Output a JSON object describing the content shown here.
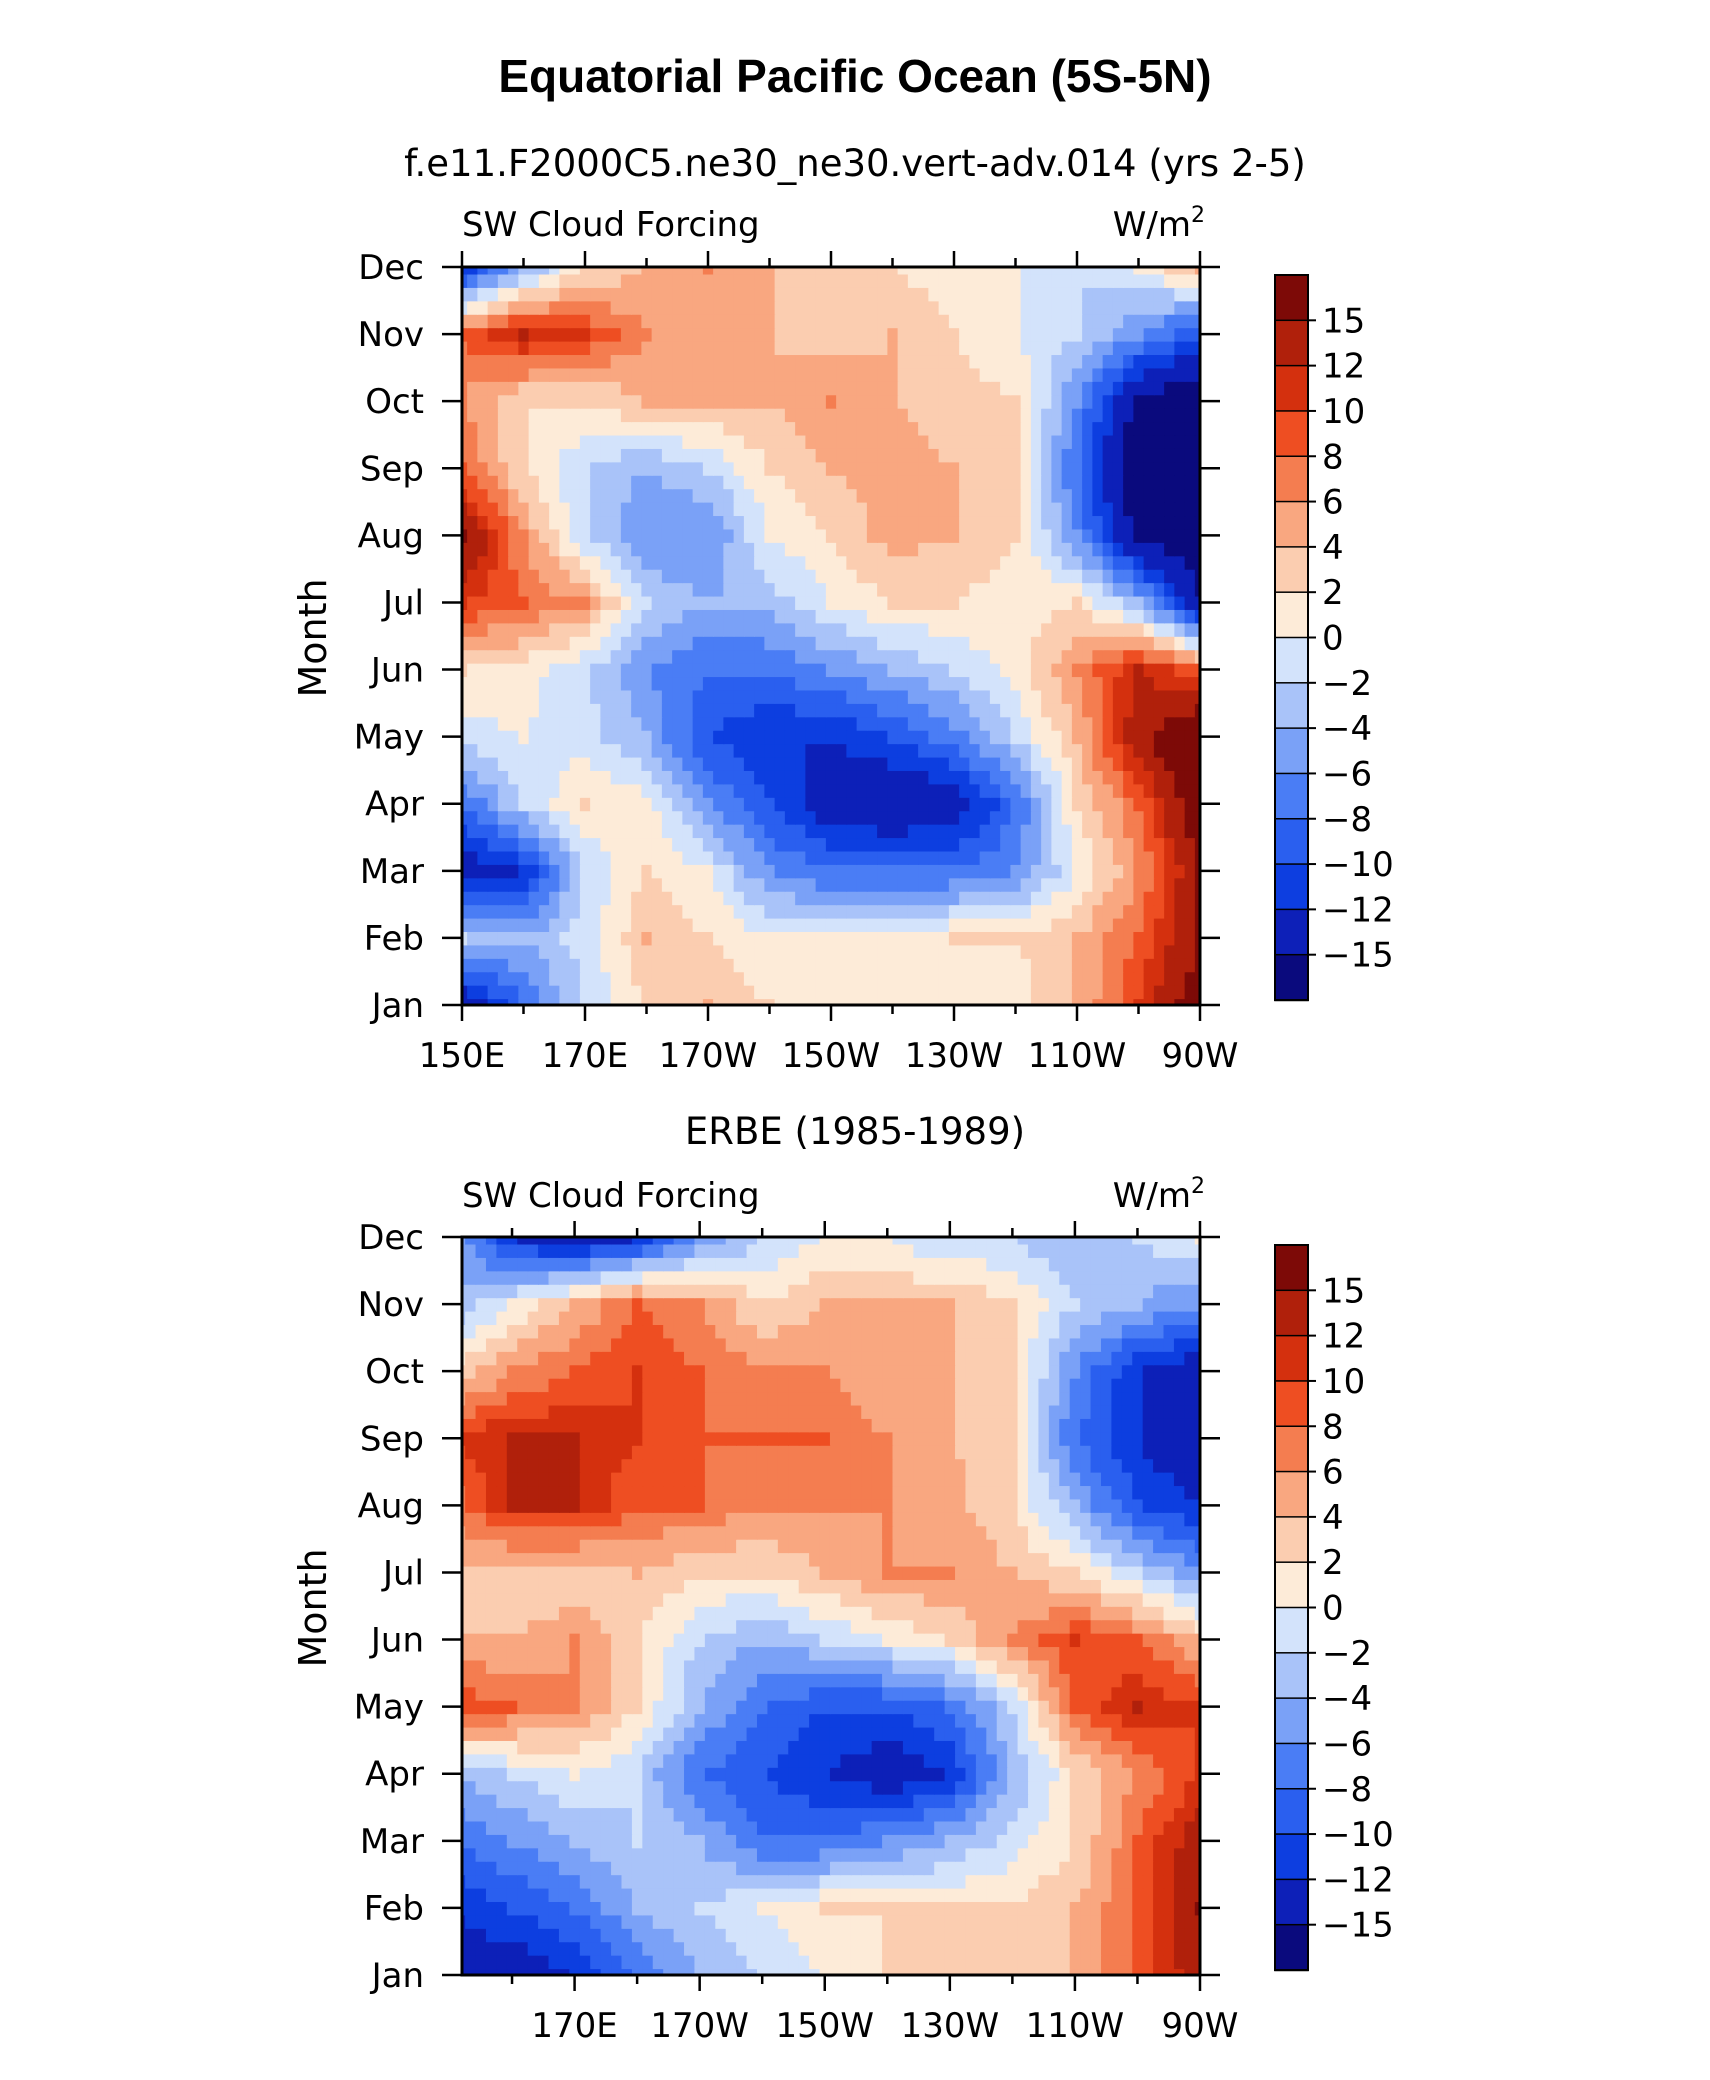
{
  "figure_title": "Equatorial Pacific Ocean (5S-5N)",
  "chart_data": [
    {
      "type": "heatmap",
      "title": "f.e11.F2000C5.ne30_ne30.vert-adv.014 (yrs 2-5)",
      "left_label": "SW Cloud Forcing",
      "units_label": "W/m",
      "units_sup": "2",
      "xlabel": "",
      "ylabel": "Month",
      "x_tick_labels": [
        "150E",
        "170E",
        "170W",
        "150W",
        "130W",
        "110W",
        "90W"
      ],
      "x_tick_values": [
        150,
        170,
        190,
        210,
        230,
        250,
        270
      ],
      "xlim": [
        150,
        270
      ],
      "y_tick_labels": [
        "Jan",
        "Feb",
        "Mar",
        "Apr",
        "May",
        "Jun",
        "Jul",
        "Aug",
        "Sep",
        "Oct",
        "Nov",
        "Dec"
      ],
      "grid_lon": [
        150,
        160,
        170,
        180,
        190,
        200,
        210,
        220,
        230,
        240,
        250,
        260,
        270
      ],
      "values": [
        [
          -15,
          -8,
          -2,
          2,
          4,
          2,
          1,
          1,
          0,
          1,
          4,
          10,
          18
        ],
        [
          -2,
          -4,
          -1,
          4,
          2,
          0,
          0,
          1,
          2,
          2,
          4,
          8,
          15
        ],
        [
          -14,
          -12,
          -2,
          2,
          0,
          -6,
          -8,
          -8,
          -8,
          -6,
          0,
          6,
          15
        ],
        [
          -8,
          -2,
          2,
          1,
          -6,
          -10,
          -14,
          -15,
          -14,
          -8,
          2,
          8,
          18
        ],
        [
          -1,
          0,
          -1,
          -4,
          -10,
          -12,
          -12,
          -10,
          -7,
          -2,
          4,
          14,
          20
        ],
        [
          2,
          1,
          -2,
          -6,
          -8,
          -8,
          -6,
          -4,
          -2,
          1,
          6,
          12,
          8
        ],
        [
          10,
          8,
          6,
          -2,
          -4,
          -3,
          0,
          2,
          2,
          1,
          2,
          -4,
          -15
        ],
        [
          16,
          6,
          -2,
          -6,
          -6,
          0,
          2,
          5,
          4,
          2,
          -6,
          -16,
          -18
        ],
        [
          8,
          2,
          -2,
          -4,
          -2,
          2,
          4,
          5,
          4,
          2,
          -8,
          -18,
          -18
        ],
        [
          6,
          2,
          2,
          4,
          4,
          4,
          6,
          4,
          3,
          2,
          -6,
          -16,
          -18
        ],
        [
          8,
          12,
          10,
          6,
          4,
          4,
          3,
          4,
          2,
          0,
          -2,
          -6,
          -10
        ],
        [
          -12,
          -4,
          2,
          4,
          6,
          4,
          2,
          2,
          1,
          0,
          -2,
          0,
          4
        ]
      ]
    },
    {
      "type": "heatmap",
      "title": "ERBE (1985-1989)",
      "left_label": "SW Cloud Forcing",
      "units_label": "W/m",
      "units_sup": "2",
      "xlabel": "",
      "ylabel": "Month",
      "x_tick_labels": [
        "170E",
        "170W",
        "150W",
        "130W",
        "110W",
        "90W"
      ],
      "x_tick_values": [
        170,
        190,
        210,
        230,
        250,
        270
      ],
      "xlim": [
        152,
        270
      ],
      "y_tick_labels": [
        "Jan",
        "Feb",
        "Mar",
        "Apr",
        "May",
        "Jun",
        "Jul",
        "Aug",
        "Sep",
        "Oct",
        "Nov",
        "Dec"
      ],
      "grid_lon": [
        150,
        160,
        170,
        180,
        190,
        200,
        210,
        220,
        230,
        240,
        250,
        260,
        270
      ],
      "values": [
        [
          -14,
          -14,
          -12,
          -8,
          -4,
          -2,
          0,
          2,
          2,
          2,
          4,
          8,
          14
        ],
        [
          -12,
          -10,
          -8,
          -4,
          -2,
          0,
          2,
          2,
          2,
          2,
          4,
          8,
          15
        ],
        [
          -8,
          -6,
          -4,
          -2,
          -4,
          -8,
          -8,
          -6,
          -4,
          -1,
          2,
          8,
          14
        ],
        [
          -4,
          -2,
          0,
          -2,
          -8,
          -10,
          -12,
          -14,
          -12,
          -4,
          2,
          6,
          10
        ],
        [
          10,
          8,
          6,
          2,
          -4,
          -8,
          -10,
          -10,
          -8,
          -2,
          8,
          12,
          10
        ],
        [
          4,
          4,
          6,
          2,
          -2,
          -4,
          -2,
          0,
          2,
          6,
          10,
          8,
          4
        ],
        [
          4,
          2,
          2,
          4,
          2,
          2,
          4,
          6,
          6,
          4,
          2,
          -2,
          -6
        ],
        [
          6,
          12,
          12,
          8,
          8,
          6,
          6,
          6,
          5,
          2,
          -4,
          -10,
          -12
        ],
        [
          10,
          12,
          12,
          10,
          8,
          8,
          8,
          6,
          4,
          2,
          -8,
          -12,
          -15
        ],
        [
          2,
          6,
          8,
          10,
          8,
          6,
          6,
          4,
          4,
          2,
          -6,
          -12,
          -14
        ],
        [
          -4,
          0,
          4,
          8,
          6,
          2,
          4,
          4,
          4,
          2,
          -2,
          -4,
          -6
        ],
        [
          -4,
          -12,
          -14,
          -12,
          -6,
          -2,
          0,
          0,
          -2,
          -2,
          -4,
          -2,
          0
        ]
      ]
    }
  ],
  "colorbar": {
    "labels": [
      "15",
      "12",
      "10",
      "8",
      "6",
      "4",
      "2",
      "0",
      "−2",
      "−4",
      "−6",
      "−8",
      "−10",
      "−12",
      "−15"
    ],
    "levels": [
      -15,
      -12,
      -10,
      -8,
      -6,
      -4,
      -2,
      0,
      2,
      4,
      6,
      8,
      10,
      12,
      15
    ],
    "colors": [
      "#0a0a7d",
      "#0d20b8",
      "#0d3ee0",
      "#2a5fef",
      "#4a7df5",
      "#7aa1f7",
      "#a9c3f9",
      "#d3e3fb",
      "#fdebd8",
      "#fbcdb0",
      "#f9a780",
      "#f47d50",
      "#ee4e22",
      "#d4300e",
      "#b0200b",
      "#7d0a07"
    ]
  }
}
